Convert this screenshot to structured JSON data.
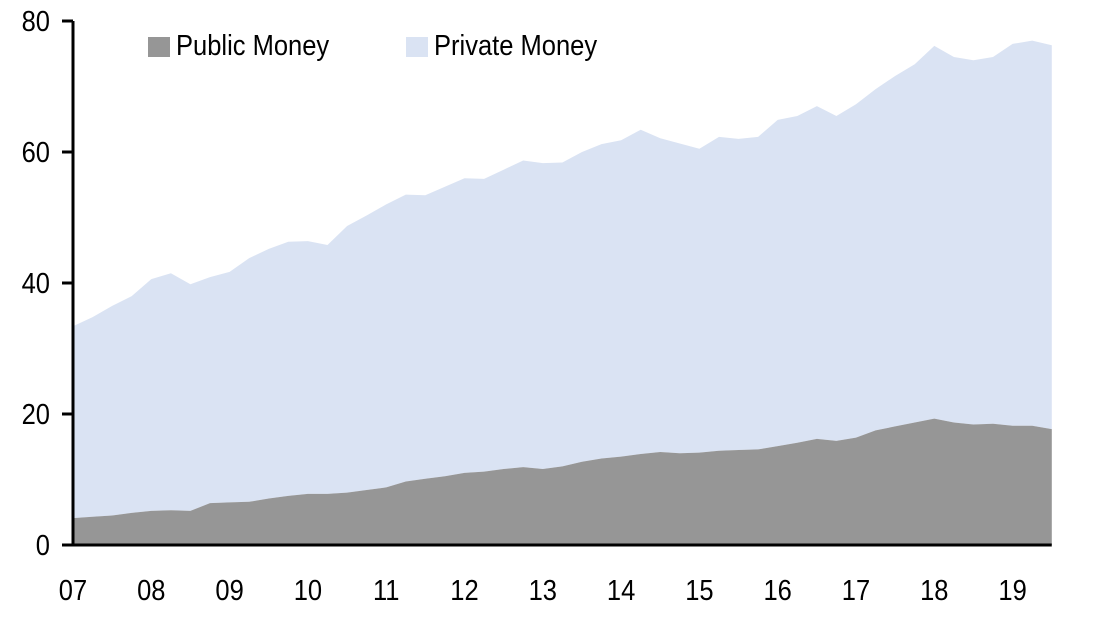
{
  "chart_data": {
    "type": "area",
    "stacked": true,
    "title": "",
    "xlabel": "",
    "ylabel": "",
    "ylim": [
      0,
      80
    ],
    "yticks": [
      0,
      20,
      40,
      60,
      80
    ],
    "xticks": [
      "07",
      "08",
      "09",
      "10",
      "11",
      "12",
      "13",
      "14",
      "15",
      "16",
      "17",
      "18",
      "19"
    ],
    "x_start": "2007 Q1",
    "x_frequency": "quarterly",
    "grid": false,
    "legend_position": "top-left",
    "series": [
      {
        "name": "Public Money",
        "color": "#969696",
        "values": [
          4.1,
          4.3,
          4.5,
          4.9,
          5.2,
          5.3,
          5.2,
          6.4,
          6.5,
          6.6,
          7.1,
          7.5,
          7.8,
          7.8,
          8.0,
          8.4,
          8.8,
          9.7,
          10.1,
          10.5,
          11.0,
          11.2,
          11.6,
          11.9,
          11.6,
          12.0,
          12.7,
          13.2,
          13.5,
          13.9,
          14.2,
          14.0,
          14.1,
          14.4,
          14.5,
          14.6,
          15.1,
          15.6,
          16.2,
          15.9,
          16.4,
          17.5,
          18.1,
          18.7,
          19.3,
          18.7,
          18.4,
          18.5,
          18.2,
          18.2,
          17.7
        ]
      },
      {
        "name": "Private Money",
        "color": "#dae3f3",
        "values": [
          29.3,
          30.5,
          32.0,
          33.1,
          35.4,
          36.2,
          34.6,
          34.5,
          35.2,
          37.2,
          38.1,
          38.8,
          38.6,
          38.0,
          40.7,
          41.9,
          43.2,
          43.8,
          43.3,
          44.2,
          45.0,
          44.7,
          45.7,
          46.8,
          46.7,
          46.4,
          47.3,
          48.0,
          48.3,
          49.5,
          47.9,
          47.3,
          46.4,
          47.9,
          47.5,
          47.7,
          49.8,
          49.9,
          50.8,
          49.6,
          50.9,
          52.1,
          53.5,
          54.7,
          56.9,
          55.8,
          55.6,
          56.0,
          58.3,
          58.8,
          58.6
        ]
      }
    ]
  }
}
